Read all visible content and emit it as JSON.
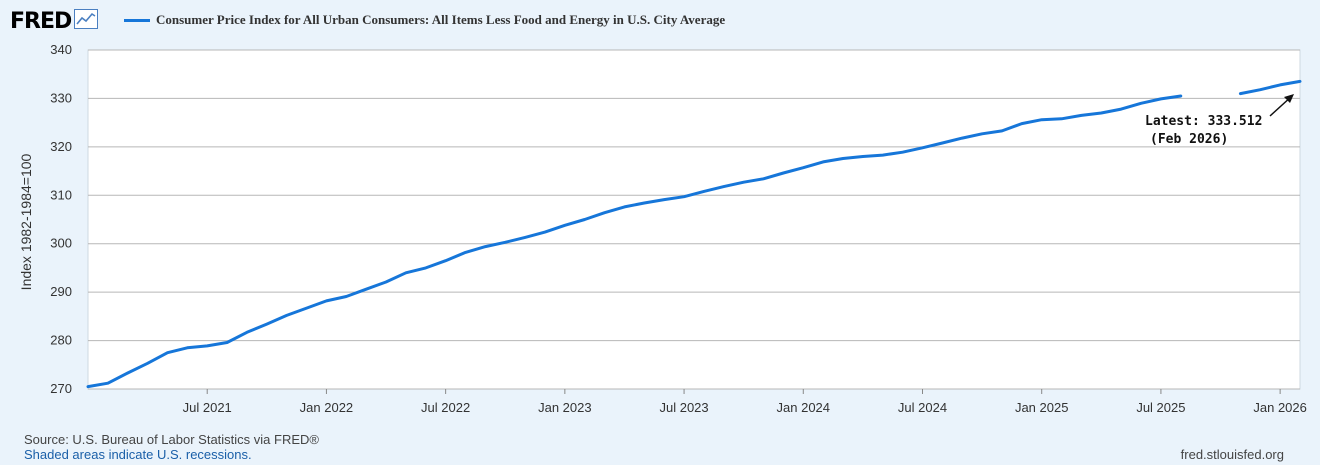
{
  "header": {
    "logo": "FRED",
    "logo_icon": "line-chart-icon",
    "legend_label": "Consumer Price Index for All Urban Consumers: All Items Less Food and Energy in U.S. City Average"
  },
  "footer": {
    "source": "U.S. Bureau of Labor Statistics via FRED®",
    "source_prefix": "Source: ",
    "note": "Shaded areas indicate U.S. recessions.",
    "site": "fred.stlouisfed.org"
  },
  "colors": {
    "series": "#1676d9",
    "background": "#eaf3fb",
    "plot": "#ffffff",
    "grid": "#b7b7b7"
  },
  "chart_data": {
    "type": "line",
    "ylabel": "Index 1982-1984=100",
    "ylim": [
      270,
      340
    ],
    "yticks": [
      270,
      280,
      290,
      300,
      310,
      320,
      330,
      340
    ],
    "xlim": [
      "2021-01",
      "2026-02"
    ],
    "xticks": [
      {
        "label": "Jul 2021",
        "date": "2021-07"
      },
      {
        "label": "Jan 2022",
        "date": "2022-01"
      },
      {
        "label": "Jul 2022",
        "date": "2022-07"
      },
      {
        "label": "Jan 2023",
        "date": "2023-01"
      },
      {
        "label": "Jul 2023",
        "date": "2023-07"
      },
      {
        "label": "Jan 2024",
        "date": "2024-01"
      },
      {
        "label": "Jul 2024",
        "date": "2024-07"
      },
      {
        "label": "Jan 2025",
        "date": "2025-01"
      },
      {
        "label": "Jul 2025",
        "date": "2025-07"
      },
      {
        "label": "Jan 2026",
        "date": "2026-01"
      }
    ],
    "grid": true,
    "series": [
      {
        "name": "Consumer Price Index for All Urban Consumers: All Items Less Food and Energy in U.S. City Average",
        "x": [
          "2021-01",
          "2021-02",
          "2021-03",
          "2021-04",
          "2021-05",
          "2021-06",
          "2021-07",
          "2021-08",
          "2021-09",
          "2021-10",
          "2021-11",
          "2021-12",
          "2022-01",
          "2022-02",
          "2022-03",
          "2022-04",
          "2022-05",
          "2022-06",
          "2022-07",
          "2022-08",
          "2022-09",
          "2022-10",
          "2022-11",
          "2022-12",
          "2023-01",
          "2023-02",
          "2023-03",
          "2023-04",
          "2023-05",
          "2023-06",
          "2023-07",
          "2023-08",
          "2023-09",
          "2023-10",
          "2023-11",
          "2023-12",
          "2024-01",
          "2024-02",
          "2024-03",
          "2024-04",
          "2024-05",
          "2024-06",
          "2024-07",
          "2024-08",
          "2024-09",
          "2024-10",
          "2024-11",
          "2024-12",
          "2025-01",
          "2025-02",
          "2025-03",
          "2025-04",
          "2025-05",
          "2025-06",
          "2025-07",
          "2025-08",
          "2025-09",
          "2025-10",
          "2025-11",
          "2025-12",
          "2026-01",
          "2026-02"
        ],
        "y": [
          270.5,
          271.2,
          273.3,
          275.3,
          277.5,
          278.5,
          278.9,
          279.6,
          281.7,
          283.4,
          285.2,
          286.7,
          288.2,
          289.1,
          290.6,
          292.1,
          294.0,
          295.0,
          296.5,
          298.2,
          299.4,
          300.3,
          301.3,
          302.4,
          303.8,
          305.0,
          306.4,
          307.6,
          308.4,
          309.1,
          309.7,
          310.8,
          311.8,
          312.7,
          313.4,
          314.6,
          315.7,
          316.9,
          317.6,
          318.0,
          318.3,
          318.9,
          319.8,
          320.8,
          321.8,
          322.7,
          323.3,
          324.8,
          325.6,
          325.8,
          326.5,
          327.0,
          327.8,
          329.0,
          329.9,
          330.5,
          null,
          null,
          331.0,
          331.8,
          332.8,
          333.512
        ]
      }
    ],
    "annotations": [
      {
        "line1": "Latest: 333.512",
        "line2": "(Feb 2026)",
        "date": "2026-02",
        "value": 333.512
      }
    ]
  }
}
